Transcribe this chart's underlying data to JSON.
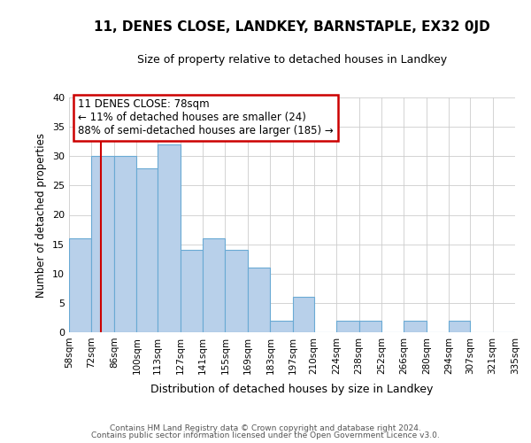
{
  "title": "11, DENES CLOSE, LANDKEY, BARNSTAPLE, EX32 0JD",
  "subtitle": "Size of property relative to detached houses in Landkey",
  "xlabel": "Distribution of detached houses by size in Landkey",
  "ylabel": "Number of detached properties",
  "bin_edges": [
    58,
    72,
    86,
    100,
    113,
    127,
    141,
    155,
    169,
    183,
    197,
    210,
    224,
    238,
    252,
    266,
    280,
    294,
    307,
    321,
    335
  ],
  "bar_heights": [
    16,
    30,
    30,
    28,
    32,
    14,
    16,
    14,
    11,
    2,
    6,
    0,
    2,
    2,
    0,
    2,
    0,
    2,
    0,
    0
  ],
  "bar_color": "#b8d0ea",
  "bar_edge_color": "#6aaad4",
  "property_line_x": 78,
  "property_line_color": "#cc0000",
  "annotation_line1": "11 DENES CLOSE: 78sqm",
  "annotation_line2": "← 11% of detached houses are smaller (24)",
  "annotation_line3": "88% of semi-detached houses are larger (185) →",
  "annotation_box_color": "#cc0000",
  "ylim": [
    0,
    40
  ],
  "yticks": [
    0,
    5,
    10,
    15,
    20,
    25,
    30,
    35,
    40
  ],
  "tick_labels": [
    "58sqm",
    "72sqm",
    "86sqm",
    "100sqm",
    "113sqm",
    "127sqm",
    "141sqm",
    "155sqm",
    "169sqm",
    "183sqm",
    "197sqm",
    "210sqm",
    "224sqm",
    "238sqm",
    "252sqm",
    "266sqm",
    "280sqm",
    "294sqm",
    "307sqm",
    "321sqm",
    "335sqm"
  ],
  "footer_line1": "Contains HM Land Registry data © Crown copyright and database right 2024.",
  "footer_line2": "Contains public sector information licensed under the Open Government Licence v3.0.",
  "background_color": "#ffffff",
  "grid_color": "#cccccc"
}
